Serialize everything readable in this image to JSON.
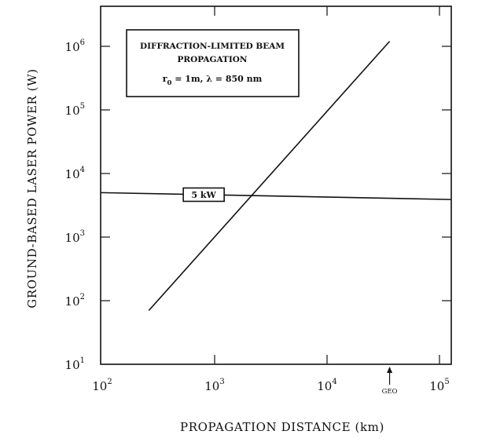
{
  "chart_data": {
    "type": "line",
    "title": "",
    "xlabel": "PROPAGATION DISTANCE (km)",
    "ylabel": "GROUND-BASED LASER POWER (W)",
    "xscale": "log",
    "yscale": "log",
    "xlim": [
      100,
      100000
    ],
    "ylim": [
      10,
      5000000
    ],
    "grid": false,
    "x_ticks": [
      {
        "value": 100,
        "base": "10",
        "exp": "2"
      },
      {
        "value": 1000,
        "base": "10",
        "exp": "3"
      },
      {
        "value": 10000,
        "base": "10",
        "exp": "4"
      },
      {
        "value": 100000,
        "base": "10",
        "exp": "5"
      }
    ],
    "y_ticks": [
      {
        "value": 10,
        "base": "10",
        "exp": "1"
      },
      {
        "value": 100,
        "base": "10",
        "exp": "2"
      },
      {
        "value": 1000,
        "base": "10",
        "exp": "3"
      },
      {
        "value": 10000,
        "base": "10",
        "exp": "4"
      },
      {
        "value": 100000,
        "base": "10",
        "exp": "5"
      },
      {
        "value": 1000000,
        "base": "10",
        "exp": "6"
      }
    ],
    "series": [
      {
        "points": [
          {
            "x": 260,
            "y": 70
          },
          {
            "x": 36000,
            "y": 1200000
          }
        ]
      }
    ],
    "reference_line": {
      "label": "5 kW",
      "y_start": 5000,
      "y_end": 3900,
      "label_x": 800
    },
    "annotations": {
      "box_lines": [
        "DIFFRACTION-LIMITED BEAM",
        "PROPAGATION"
      ],
      "params_r_symbol": "r",
      "params_r_sub": "0",
      "params_rest": " = 1m,  λ = 850 nm",
      "geo_label": "GEO",
      "geo_x": 36000
    }
  }
}
